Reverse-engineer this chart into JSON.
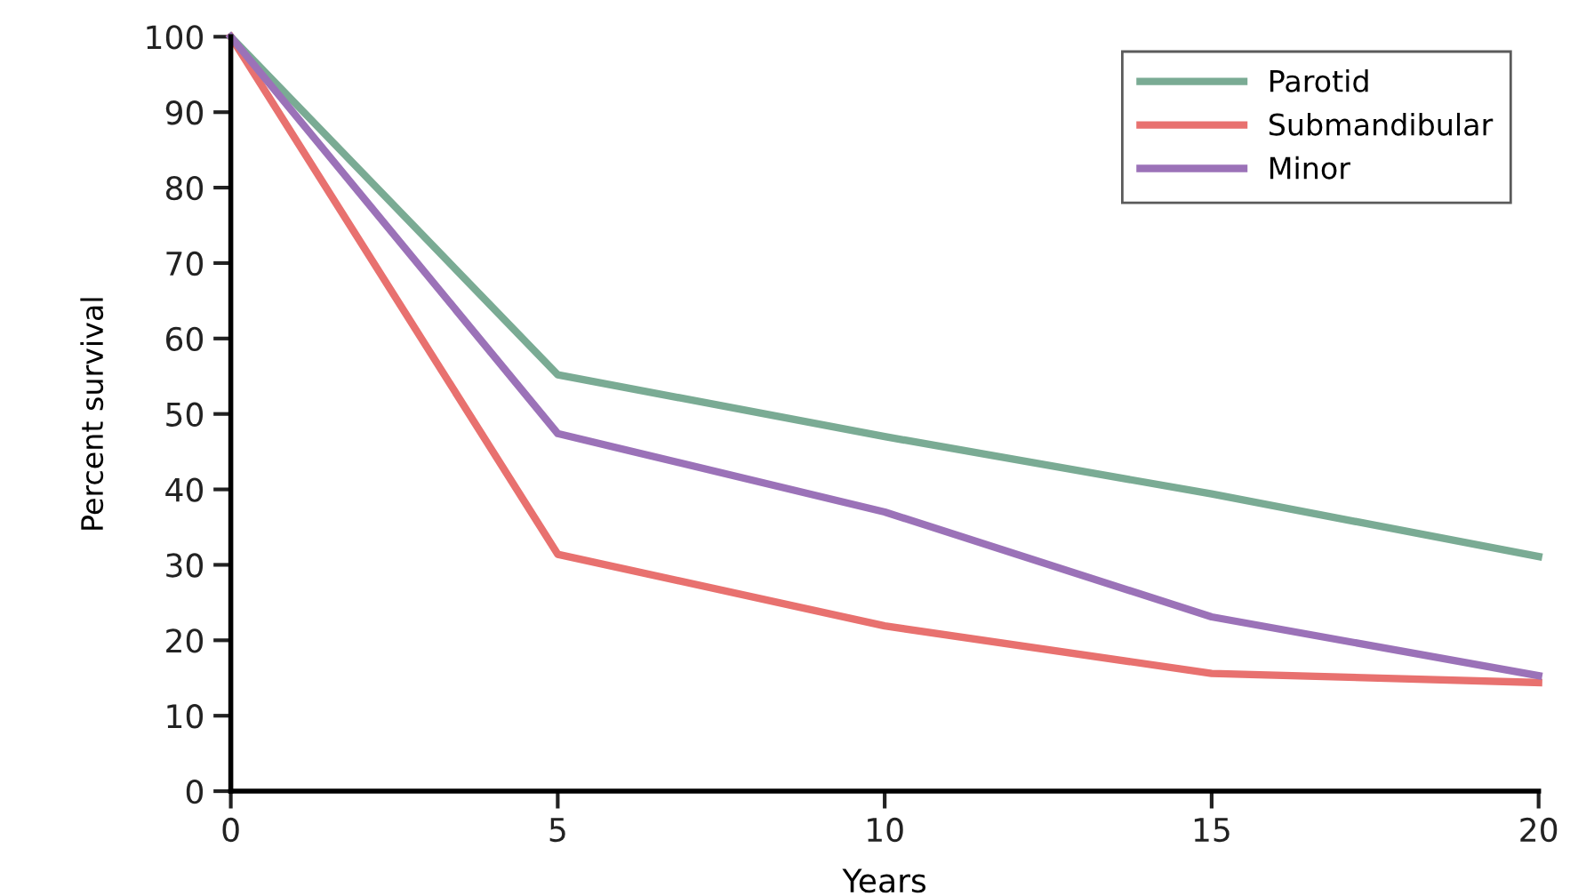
{
  "chart_data": {
    "type": "line",
    "xlabel": "Years",
    "ylabel": "Percent survival",
    "x": [
      0,
      5,
      10,
      15,
      20
    ],
    "series": [
      {
        "name": "Parotid",
        "color": "#7aab94",
        "values": [
          100,
          55.2,
          47,
          39.4,
          31.1
        ]
      },
      {
        "name": "Submandibular",
        "color": "#e8716f",
        "values": [
          100,
          31.4,
          21.9,
          15.6,
          14.4
        ]
      },
      {
        "name": "Minor",
        "color": "#9b72b8",
        "values": [
          100,
          47.4,
          37,
          23.1,
          15.3
        ]
      }
    ],
    "xlim": [
      0,
      20
    ],
    "ylim": [
      0,
      100
    ],
    "xticks": [
      0,
      5,
      10,
      15,
      20
    ],
    "yticks": [
      0,
      10,
      20,
      30,
      40,
      50,
      60,
      70,
      80,
      90,
      100
    ],
    "grid": false,
    "legend": "top right",
    "marker": "none",
    "line_style": "solid"
  }
}
